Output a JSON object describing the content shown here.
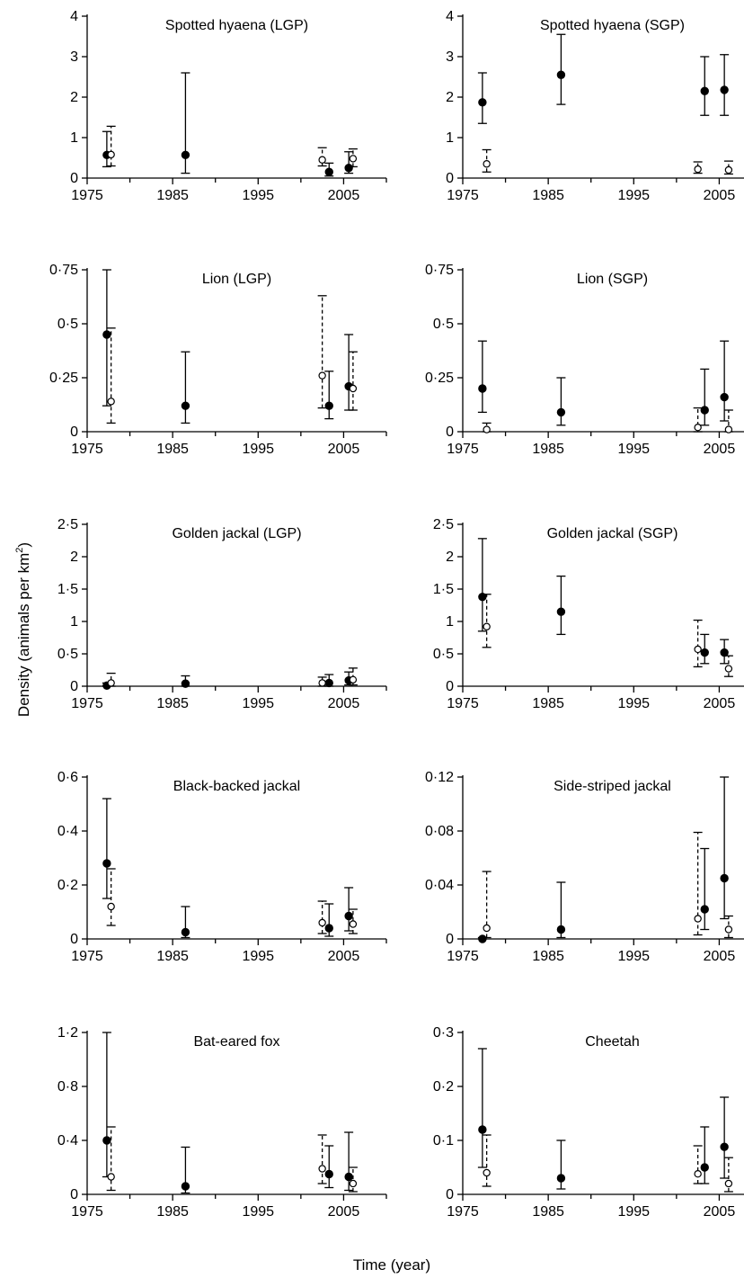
{
  "figure": {
    "ylabel_main": "Density (animals per km",
    "ylabel_sup": "2",
    "ylabel_end": ")",
    "xlabel": "Time (year)"
  },
  "chart_data": [
    {
      "type": "scatter",
      "title": "Spotted hyaena (LGP)",
      "xlim": [
        1975,
        2010
      ],
      "ylim": [
        0,
        4
      ],
      "xticks": [
        1975,
        1985,
        1995,
        2005
      ],
      "xtick_labels": [
        "1975",
        "1985",
        "1995",
        "2005"
      ],
      "yticks": [
        0,
        1,
        2,
        3,
        4
      ],
      "ytick_labels": [
        "0",
        "1",
        "2",
        "3",
        "4"
      ],
      "series": [
        {
          "marker": "filled",
          "line": "solid",
          "points": [
            {
              "x": 1977.3,
              "y": 0.57,
              "lo": 0.28,
              "hi": 1.15
            },
            {
              "x": 1986.5,
              "y": 0.57,
              "lo": 0.12,
              "hi": 2.6
            },
            {
              "x": 2003.3,
              "y": 0.15,
              "lo": 0.05,
              "hi": 0.37
            },
            {
              "x": 2005.6,
              "y": 0.25,
              "lo": 0.12,
              "hi": 0.65
            }
          ]
        },
        {
          "marker": "open",
          "line": "dashed",
          "points": [
            {
              "x": 1977.8,
              "y": 0.58,
              "lo": 0.3,
              "hi": 1.28
            },
            {
              "x": 2002.5,
              "y": 0.45,
              "lo": 0.3,
              "hi": 0.75
            },
            {
              "x": 2006.1,
              "y": 0.48,
              "lo": 0.28,
              "hi": 0.72
            }
          ]
        }
      ]
    },
    {
      "type": "scatter",
      "title": "Spotted hyaena (SGP)",
      "xlim": [
        1975,
        2010
      ],
      "ylim": [
        0,
        4
      ],
      "xticks": [
        1975,
        1985,
        1995,
        2005
      ],
      "xtick_labels": [
        "1975",
        "1985",
        "1995",
        "2005"
      ],
      "yticks": [
        0,
        1,
        2,
        3,
        4
      ],
      "ytick_labels": [
        "0",
        "1",
        "2",
        "3",
        "4"
      ],
      "series": [
        {
          "marker": "filled",
          "line": "solid",
          "points": [
            {
              "x": 1977.3,
              "y": 1.87,
              "lo": 1.35,
              "hi": 2.6
            },
            {
              "x": 1986.5,
              "y": 2.55,
              "lo": 1.82,
              "hi": 3.55
            },
            {
              "x": 2003.3,
              "y": 2.15,
              "lo": 1.55,
              "hi": 3.0
            },
            {
              "x": 2005.6,
              "y": 2.18,
              "lo": 1.55,
              "hi": 3.05
            }
          ]
        },
        {
          "marker": "open",
          "line": "dashed",
          "points": [
            {
              "x": 1977.8,
              "y": 0.35,
              "lo": 0.15,
              "hi": 0.7
            },
            {
              "x": 2002.5,
              "y": 0.22,
              "lo": 0.12,
              "hi": 0.4
            },
            {
              "x": 2006.1,
              "y": 0.2,
              "lo": 0.1,
              "hi": 0.42
            }
          ]
        }
      ]
    },
    {
      "type": "scatter",
      "title": "Lion (LGP)",
      "xlim": [
        1975,
        2010
      ],
      "ylim": [
        0,
        0.75
      ],
      "xticks": [
        1975,
        1985,
        1995,
        2005
      ],
      "xtick_labels": [
        "1975",
        "1985",
        "1995",
        "2005"
      ],
      "yticks": [
        0,
        0.25,
        0.5,
        0.75
      ],
      "ytick_labels": [
        "0",
        "0·25",
        "0·5",
        "0·75"
      ],
      "series": [
        {
          "marker": "filled",
          "line": "solid",
          "points": [
            {
              "x": 1977.3,
              "y": 0.45,
              "lo": 0.12,
              "hi": 0.75
            },
            {
              "x": 1986.5,
              "y": 0.12,
              "lo": 0.04,
              "hi": 0.37
            },
            {
              "x": 2003.3,
              "y": 0.12,
              "lo": 0.06,
              "hi": 0.28
            },
            {
              "x": 2005.6,
              "y": 0.21,
              "lo": 0.1,
              "hi": 0.45
            }
          ]
        },
        {
          "marker": "open",
          "line": "dashed",
          "points": [
            {
              "x": 1977.8,
              "y": 0.14,
              "lo": 0.04,
              "hi": 0.48
            },
            {
              "x": 2002.5,
              "y": 0.26,
              "lo": 0.11,
              "hi": 0.63
            },
            {
              "x": 2006.1,
              "y": 0.2,
              "lo": 0.1,
              "hi": 0.37
            }
          ]
        }
      ]
    },
    {
      "type": "scatter",
      "title": "Lion (SGP)",
      "xlim": [
        1975,
        2010
      ],
      "ylim": [
        0,
        0.75
      ],
      "xticks": [
        1975,
        1985,
        1995,
        2005
      ],
      "xtick_labels": [
        "1975",
        "1985",
        "1995",
        "2005"
      ],
      "yticks": [
        0,
        0.25,
        0.5,
        0.75
      ],
      "ytick_labels": [
        "0",
        "0·25",
        "0·5",
        "0·75"
      ],
      "series": [
        {
          "marker": "filled",
          "line": "solid",
          "points": [
            {
              "x": 1977.3,
              "y": 0.2,
              "lo": 0.09,
              "hi": 0.42
            },
            {
              "x": 1986.5,
              "y": 0.09,
              "lo": 0.03,
              "hi": 0.25
            },
            {
              "x": 2003.3,
              "y": 0.1,
              "lo": 0.03,
              "hi": 0.29
            },
            {
              "x": 2005.6,
              "y": 0.16,
              "lo": 0.05,
              "hi": 0.42
            }
          ]
        },
        {
          "marker": "open",
          "line": "dashed",
          "points": [
            {
              "x": 1977.8,
              "y": 0.01,
              "lo": 0.0,
              "hi": 0.04
            },
            {
              "x": 2002.5,
              "y": 0.02,
              "lo": 0.0,
              "hi": 0.11
            },
            {
              "x": 2006.1,
              "y": 0.01,
              "lo": 0.0,
              "hi": 0.1
            }
          ]
        }
      ]
    },
    {
      "type": "scatter",
      "title": "Golden jackal (LGP)",
      "xlim": [
        1975,
        2010
      ],
      "ylim": [
        0,
        2.5
      ],
      "xticks": [
        1975,
        1985,
        1995,
        2005
      ],
      "xtick_labels": [
        "1975",
        "1985",
        "1995",
        "2005"
      ],
      "yticks": [
        0,
        0.5,
        1,
        1.5,
        2,
        2.5
      ],
      "ytick_labels": [
        "0",
        "0·5",
        "1",
        "1·5",
        "2",
        "2·5"
      ],
      "series": [
        {
          "marker": "filled",
          "line": "solid",
          "points": [
            {
              "x": 1977.3,
              "y": 0.01,
              "lo": 0.0,
              "hi": 0.05
            },
            {
              "x": 1986.5,
              "y": 0.04,
              "lo": 0.0,
              "hi": 0.16
            },
            {
              "x": 2003.3,
              "y": 0.05,
              "lo": 0.0,
              "hi": 0.18
            },
            {
              "x": 2005.6,
              "y": 0.09,
              "lo": 0.02,
              "hi": 0.22
            }
          ]
        },
        {
          "marker": "open",
          "line": "dashed",
          "points": [
            {
              "x": 1977.8,
              "y": 0.05,
              "lo": 0.0,
              "hi": 0.2
            },
            {
              "x": 2002.5,
              "y": 0.05,
              "lo": 0.0,
              "hi": 0.14
            },
            {
              "x": 2006.1,
              "y": 0.1,
              "lo": 0.02,
              "hi": 0.28
            }
          ]
        }
      ]
    },
    {
      "type": "scatter",
      "title": "Golden jackal (SGP)",
      "xlim": [
        1975,
        2010
      ],
      "ylim": [
        0,
        2.5
      ],
      "xticks": [
        1975,
        1985,
        1995,
        2005
      ],
      "xtick_labels": [
        "1975",
        "1985",
        "1995",
        "2005"
      ],
      "yticks": [
        0,
        0.5,
        1,
        1.5,
        2,
        2.5
      ],
      "ytick_labels": [
        "0",
        "0·5",
        "1",
        "1·5",
        "2",
        "2·5"
      ],
      "series": [
        {
          "marker": "filled",
          "line": "solid",
          "points": [
            {
              "x": 1977.3,
              "y": 1.38,
              "lo": 0.85,
              "hi": 2.28
            },
            {
              "x": 1986.5,
              "y": 1.15,
              "lo": 0.8,
              "hi": 1.7
            },
            {
              "x": 2003.3,
              "y": 0.52,
              "lo": 0.35,
              "hi": 0.8
            },
            {
              "x": 2005.6,
              "y": 0.52,
              "lo": 0.35,
              "hi": 0.72
            }
          ]
        },
        {
          "marker": "open",
          "line": "dashed",
          "points": [
            {
              "x": 1977.8,
              "y": 0.92,
              "lo": 0.6,
              "hi": 1.42
            },
            {
              "x": 2002.5,
              "y": 0.57,
              "lo": 0.3,
              "hi": 1.02
            },
            {
              "x": 2006.1,
              "y": 0.27,
              "lo": 0.15,
              "hi": 0.47
            }
          ]
        }
      ]
    },
    {
      "type": "scatter",
      "title": "Black-backed jackal",
      "xlim": [
        1975,
        2010
      ],
      "ylim": [
        0,
        0.6
      ],
      "xticks": [
        1975,
        1985,
        1995,
        2005
      ],
      "xtick_labels": [
        "1975",
        "1985",
        "1995",
        "2005"
      ],
      "yticks": [
        0,
        0.2,
        0.4,
        0.6
      ],
      "ytick_labels": [
        "0",
        "0·2",
        "0·4",
        "0·6"
      ],
      "series": [
        {
          "marker": "filled",
          "line": "solid",
          "points": [
            {
              "x": 1977.3,
              "y": 0.28,
              "lo": 0.15,
              "hi": 0.52
            },
            {
              "x": 1986.5,
              "y": 0.025,
              "lo": 0.005,
              "hi": 0.12
            },
            {
              "x": 2003.3,
              "y": 0.04,
              "lo": 0.01,
              "hi": 0.13
            },
            {
              "x": 2005.6,
              "y": 0.085,
              "lo": 0.03,
              "hi": 0.19
            }
          ]
        },
        {
          "marker": "open",
          "line": "dashed",
          "points": [
            {
              "x": 1977.8,
              "y": 0.12,
              "lo": 0.05,
              "hi": 0.26
            },
            {
              "x": 2002.5,
              "y": 0.06,
              "lo": 0.02,
              "hi": 0.14
            },
            {
              "x": 2006.1,
              "y": 0.055,
              "lo": 0.02,
              "hi": 0.11
            }
          ]
        }
      ]
    },
    {
      "type": "scatter",
      "title": "Side-striped jackal",
      "xlim": [
        1975,
        2010
      ],
      "ylim": [
        0,
        0.12
      ],
      "xticks": [
        1975,
        1985,
        1995,
        2005
      ],
      "xtick_labels": [
        "1975",
        "1985",
        "1995",
        "2005"
      ],
      "yticks": [
        0,
        0.04,
        0.08,
        0.12
      ],
      "ytick_labels": [
        "0",
        "0·04",
        "0·08",
        "0·12"
      ],
      "series": [
        {
          "marker": "filled",
          "line": "solid",
          "points": [
            {
              "x": 1977.3,
              "y": 0.0,
              "lo": 0.0,
              "hi": 0.001
            },
            {
              "x": 1986.5,
              "y": 0.007,
              "lo": 0.001,
              "hi": 0.042
            },
            {
              "x": 2003.3,
              "y": 0.022,
              "lo": 0.007,
              "hi": 0.067
            },
            {
              "x": 2005.6,
              "y": 0.045,
              "lo": 0.015,
              "hi": 0.12
            }
          ]
        },
        {
          "marker": "open",
          "line": "dashed",
          "points": [
            {
              "x": 1977.8,
              "y": 0.008,
              "lo": 0.001,
              "hi": 0.05
            },
            {
              "x": 2002.5,
              "y": 0.015,
              "lo": 0.003,
              "hi": 0.079
            },
            {
              "x": 2006.1,
              "y": 0.007,
              "lo": 0.001,
              "hi": 0.017
            }
          ]
        }
      ]
    },
    {
      "type": "scatter",
      "title": "Bat-eared fox",
      "xlim": [
        1975,
        2010
      ],
      "ylim": [
        0,
        1.2
      ],
      "xticks": [
        1975,
        1985,
        1995,
        2005
      ],
      "xtick_labels": [
        "1975",
        "1985",
        "1995",
        "2005"
      ],
      "yticks": [
        0,
        0.4,
        0.8,
        1.2
      ],
      "ytick_labels": [
        "0",
        "0·4",
        "0·8",
        "1·2"
      ],
      "series": [
        {
          "marker": "filled",
          "line": "solid",
          "points": [
            {
              "x": 1977.3,
              "y": 0.4,
              "lo": 0.13,
              "hi": 1.2
            },
            {
              "x": 1986.5,
              "y": 0.06,
              "lo": 0.01,
              "hi": 0.35
            },
            {
              "x": 2003.3,
              "y": 0.15,
              "lo": 0.05,
              "hi": 0.36
            },
            {
              "x": 2005.6,
              "y": 0.13,
              "lo": 0.03,
              "hi": 0.46
            }
          ]
        },
        {
          "marker": "open",
          "line": "dashed",
          "points": [
            {
              "x": 1977.8,
              "y": 0.13,
              "lo": 0.03,
              "hi": 0.5
            },
            {
              "x": 2002.5,
              "y": 0.19,
              "lo": 0.08,
              "hi": 0.44
            },
            {
              "x": 2006.1,
              "y": 0.08,
              "lo": 0.02,
              "hi": 0.2
            }
          ]
        }
      ]
    },
    {
      "type": "scatter",
      "title": "Cheetah",
      "xlim": [
        1975,
        2010
      ],
      "ylim": [
        0,
        0.3
      ],
      "xticks": [
        1975,
        1985,
        1995,
        2005
      ],
      "xtick_labels": [
        "1975",
        "1985",
        "1995",
        "2005"
      ],
      "yticks": [
        0,
        0.1,
        0.2,
        0.3
      ],
      "ytick_labels": [
        "0",
        "0·1",
        "0·2",
        "0·3"
      ],
      "series": [
        {
          "marker": "filled",
          "line": "solid",
          "points": [
            {
              "x": 1977.3,
              "y": 0.12,
              "lo": 0.05,
              "hi": 0.27
            },
            {
              "x": 1986.5,
              "y": 0.03,
              "lo": 0.01,
              "hi": 0.1
            },
            {
              "x": 2003.3,
              "y": 0.05,
              "lo": 0.02,
              "hi": 0.125
            },
            {
              "x": 2005.6,
              "y": 0.088,
              "lo": 0.03,
              "hi": 0.18
            }
          ]
        },
        {
          "marker": "open",
          "line": "dashed",
          "points": [
            {
              "x": 1977.8,
              "y": 0.04,
              "lo": 0.015,
              "hi": 0.11
            },
            {
              "x": 2002.5,
              "y": 0.038,
              "lo": 0.02,
              "hi": 0.09
            },
            {
              "x": 2006.1,
              "y": 0.02,
              "lo": 0.005,
              "hi": 0.068
            }
          ]
        }
      ]
    }
  ]
}
